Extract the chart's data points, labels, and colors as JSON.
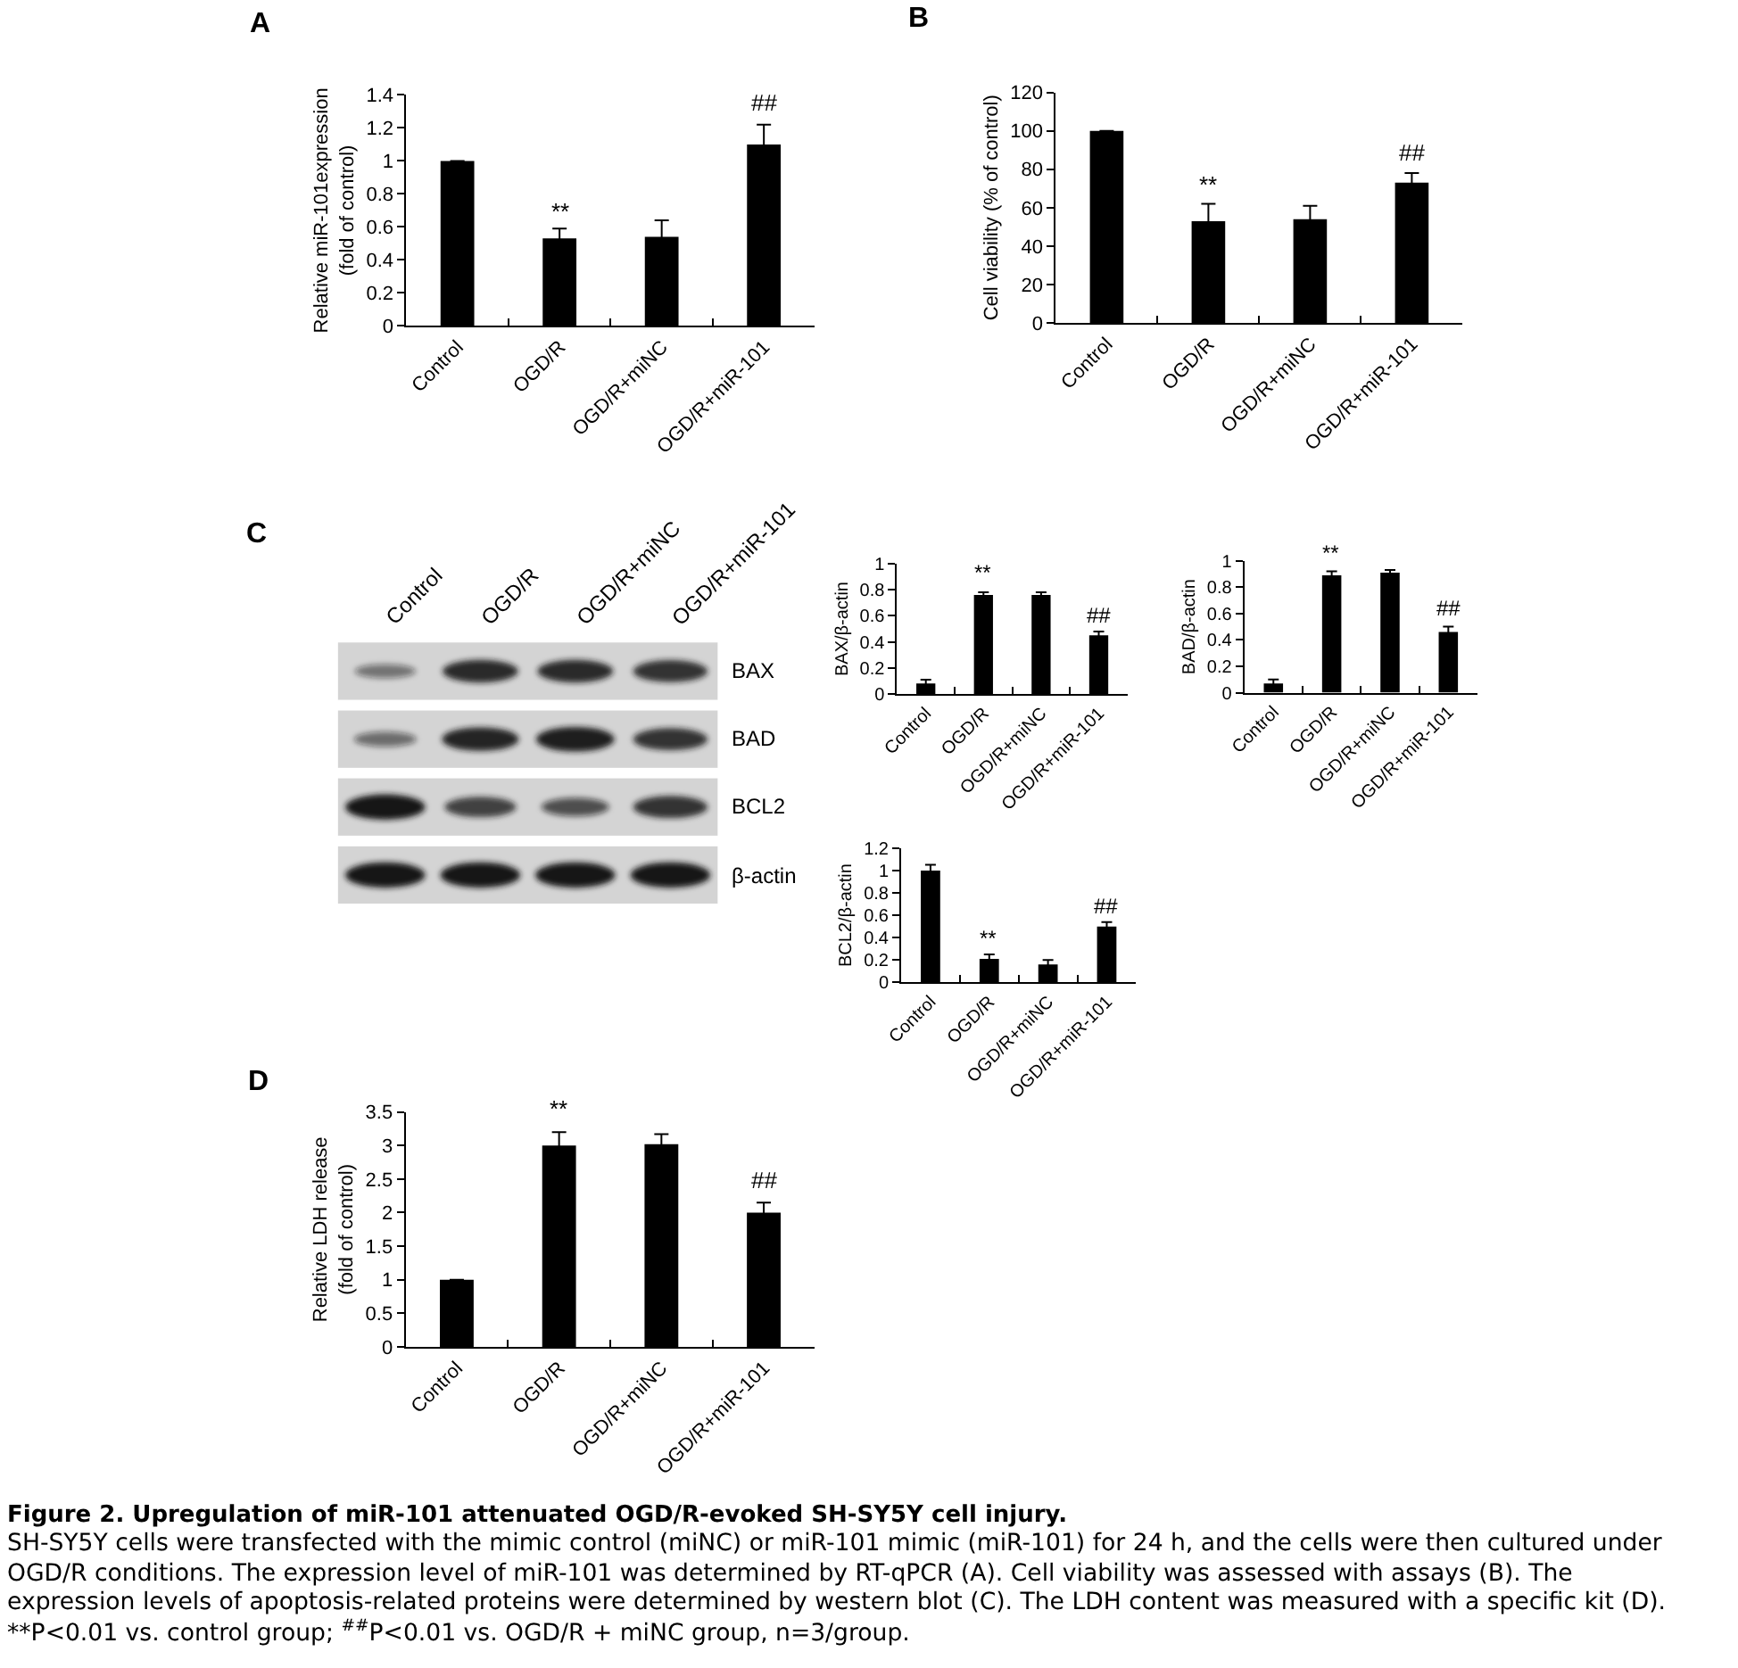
{
  "chart_data": [
    {
      "type": "bar",
      "title": "A",
      "ylabel": "Relative miR-101expression\n(fold of control)",
      "categories": [
        "Control",
        "OGD/R",
        "OGD/R+miNC",
        "OGD/R+miR-101"
      ],
      "values": [
        1,
        0.53,
        0.54,
        1.1
      ],
      "errors": [
        0,
        0.06,
        0.1,
        0.12
      ],
      "color": "#000000",
      "ylim": [
        0,
        1.4
      ],
      "yticks": [
        0,
        0.2,
        0.4,
        0.6,
        0.8,
        1,
        1.2,
        1.4
      ],
      "annotations": [
        "**",
        "##"
      ]
    },
    {
      "type": "bar",
      "title": "B",
      "ylabel": "Cell viability (% of control)",
      "categories": [
        "Control",
        "OGD/R",
        "OGD/R+miNC",
        "OGD/R+miR-101"
      ],
      "values": [
        100,
        53,
        54,
        73
      ],
      "errors": [
        0,
        9,
        7,
        5
      ],
      "color": "#000000",
      "ylim": [
        0,
        120
      ],
      "yticks": [
        0,
        20,
        40,
        60,
        80,
        100,
        120
      ],
      "annotations": [
        "**",
        "##"
      ]
    },
    {
      "type": "other",
      "title": "C",
      "categories": [
        "Control",
        "OGD/R",
        "OGD/R+miNC",
        "OGD/R+miR-101"
      ],
      "y_categories": [
        "BAX",
        "BAD",
        "BCL2",
        "β-actin"
      ]
    },
    {
      "type": "bar",
      "ylabel": "BAX/β-actin",
      "categories": [
        "Control",
        "OGD/R",
        "OGD/R+miNC",
        "OGD/R+miR-101"
      ],
      "values": [
        0.08,
        0.76,
        0.76,
        0.45
      ],
      "errors": [
        0.03,
        0.02,
        0.02,
        0.03
      ],
      "color": "#000000",
      "ylim": [
        0,
        1
      ],
      "yticks": [
        0,
        0.2,
        0.4,
        0.6,
        0.8,
        1
      ],
      "annotations": [
        "**",
        "##"
      ]
    },
    {
      "type": "bar",
      "ylabel": "BAD/β-actin",
      "categories": [
        "Control",
        "OGD/R",
        "OGD/R+miNC",
        "OGD/R+miR-101"
      ],
      "values": [
        0.07,
        0.89,
        0.91,
        0.46
      ],
      "errors": [
        0.03,
        0.03,
        0.02,
        0.04
      ],
      "color": "#000000",
      "ylim": [
        0,
        1
      ],
      "yticks": [
        0,
        0.2,
        0.4,
        0.6,
        0.8,
        1
      ],
      "annotations": [
        "**",
        "##"
      ]
    },
    {
      "type": "bar",
      "ylabel": "BCL2/β-actin",
      "categories": [
        "Control",
        "OGD/R",
        "OGD/R+miNC",
        "OGD/R+miR-101"
      ],
      "values": [
        1,
        0.21,
        0.16,
        0.5
      ],
      "errors": [
        0.05,
        0.04,
        0.04,
        0.04
      ],
      "color": "#000000",
      "ylim": [
        0,
        1.2
      ],
      "yticks": [
        0,
        0.2,
        0.4,
        0.6,
        0.8,
        1,
        1.2
      ],
      "annotations": [
        "**",
        "##"
      ]
    },
    {
      "type": "bar",
      "title": "D",
      "ylabel": "Relative LDH release\n(fold of control)",
      "categories": [
        "Control",
        "OGD/R",
        "OGD/R+miNC",
        "OGD/R+miR-101"
      ],
      "values": [
        1,
        3,
        3.02,
        2
      ],
      "errors": [
        0,
        0.2,
        0.15,
        0.15
      ],
      "color": "#000000",
      "ylim": [
        0,
        3.5
      ],
      "yticks": [
        0,
        0.5,
        1,
        1.5,
        2,
        2.5,
        3,
        3.5
      ],
      "annotations": [
        "**",
        "##"
      ]
    },
    {
      "type": "other",
      "title": "Figure 2. Upregulation of miR-101 attenuated OGD/R-evoked SH-SY5Y cell injury.",
      "annotations": [
        "SH-SY5Y cells were transfected with the mimic control (miNC) or miR-101 mimic (miR-101) for 24 h, and the cells were then cultured under OGD/R conditions. The expression level of miR-101 was determined by RT-qPCR (A). Cell viability was assessed with assays (B). The expression levels of apoptosis-related proteins were determined by western blot (C). The LDH content was measured with a specific kit (D). **P<0.01 vs. control group; $^{##}$P<0.01 vs. OGD/R + miNC group, n=3/group."
      ]
    }
  ]
}
